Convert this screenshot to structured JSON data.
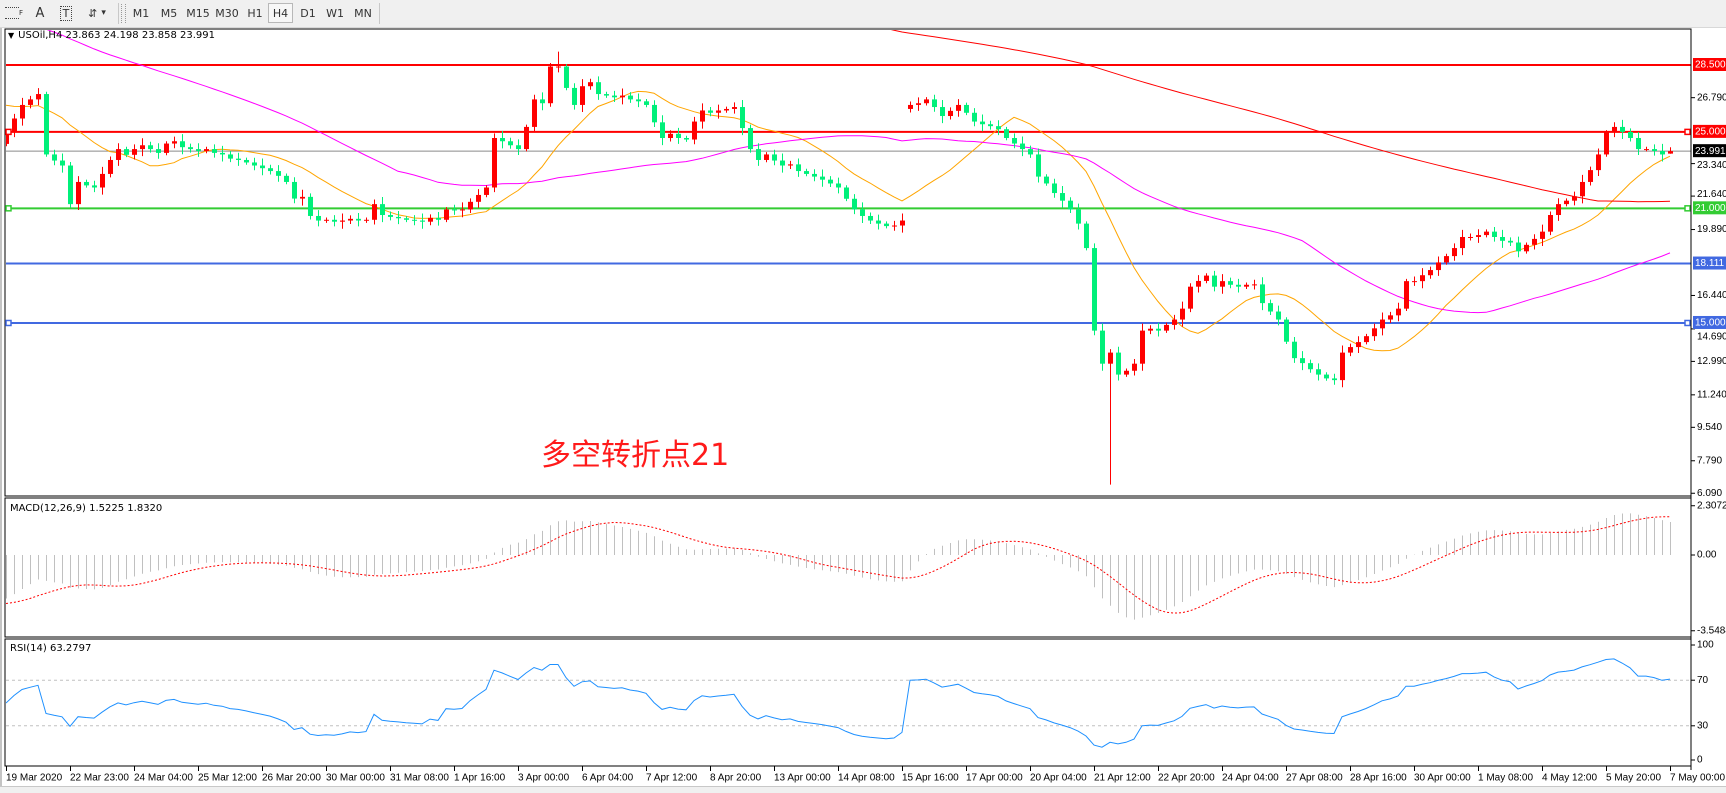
{
  "toolbar": {
    "tools": [
      {
        "icon": "period-separators-icon",
        "label": "F"
      },
      {
        "icon": "text-icon",
        "label": "A"
      },
      {
        "icon": "text-label-icon",
        "label": "T"
      },
      {
        "icon": "arrows-icon",
        "label": "⇵"
      }
    ],
    "dropdown_icon": "▾",
    "timeframes": [
      "M1",
      "M5",
      "M15",
      "M30",
      "H1",
      "H4",
      "D1",
      "W1",
      "MN"
    ],
    "active_timeframe": "H4"
  },
  "chart": {
    "header_icon": "▼",
    "symbol_header": "USOil,H4  23.863 24.198 23.858 23.991",
    "annotation": "多空转折点21",
    "colors": {
      "bull_candle": "#ff0000",
      "bear_candle": "#00f07a",
      "ma_fast": "#ffa500",
      "ma_mid": "#ff00ff",
      "ma_slow": "#ff0000",
      "macd_histogram": "#c0c0c0",
      "macd_signal": "#ff0000",
      "rsi_line": "#1e90ff",
      "current_price_line": "#8a8a8a"
    }
  },
  "chart_data": {
    "type": "candlestick",
    "symbol": "USOil",
    "timeframe": "H4",
    "last_bar": {
      "open": 23.863,
      "high": 24.198,
      "low": 23.858,
      "close": 23.991
    },
    "close": [
      24.97,
      25.7,
      26.41,
      26.7,
      26.98,
      23.82,
      23.5,
      23.24,
      21.22,
      22.38,
      22.2,
      22.09,
      22.8,
      23.53,
      24.1,
      23.8,
      24.1,
      24.3,
      24.1,
      23.9,
      24.39,
      24.51,
      24.2,
      24.1,
      24.0,
      24.1,
      23.9,
      23.82,
      23.6,
      23.53,
      23.4,
      23.24,
      23.1,
      22.95,
      22.7,
      22.38,
      21.51,
      21.6,
      20.6,
      20.36,
      20.4,
      20.3,
      20.36,
      20.45,
      20.36,
      20.4,
      21.22,
      20.65,
      20.55,
      20.48,
      20.4,
      20.36,
      20.3,
      20.5,
      20.4,
      20.94,
      20.9,
      20.94,
      21.34,
      21.7,
      22.09,
      24.68,
      24.51,
      24.3,
      24.1,
      25.26,
      26.7,
      26.5,
      28.42,
      28.42,
      27.3,
      26.41,
      27.39,
      27.6,
      26.98,
      26.9,
      26.81,
      26.9,
      26.7,
      26.6,
      26.41,
      25.5,
      24.68,
      24.9,
      24.68,
      24.6,
      25.54,
      26.12,
      26.0,
      26.12,
      26.2,
      26.3,
      25.2,
      24.1,
      23.53,
      23.82,
      23.5,
      23.24,
      23.3,
      22.95,
      22.8,
      22.66,
      22.5,
      22.3,
      22.09,
      21.5,
      20.94,
      20.6,
      20.36,
      20.2,
      20.07,
      20.1,
      20.36,
      26.41,
      26.5,
      26.7,
      26.3,
      25.83,
      26.1,
      26.41,
      26.0,
      25.54,
      25.4,
      25.3,
      25.14,
      24.68,
      24.39,
      24.1,
      23.82,
      22.66,
      22.3,
      21.8,
      21.4,
      20.94,
      20.2,
      18.92,
      14.6,
      12.87,
      13.45,
      12.3,
      12.5,
      12.87,
      14.6,
      14.7,
      14.6,
      14.9,
      15.18,
      15.75,
      16.9,
      17.2,
      17.48,
      16.9,
      17.19,
      17.0,
      16.9,
      17.0,
      17.02,
      16.04,
      15.6,
      15.18,
      14.02,
      13.16,
      12.9,
      12.58,
      12.3,
      12.1,
      12.01,
      13.45,
      13.74,
      14.0,
      14.31,
      14.72,
      15.18,
      15.4,
      15.75,
      17.19,
      17.19,
      17.5,
      17.77,
      18.17,
      18.5,
      18.92,
      19.5,
      19.5,
      19.6,
      19.78,
      19.5,
      19.3,
      19.21,
      18.75,
      19.09,
      19.4,
      19.78,
      20.65,
      21.22,
      21.4,
      21.63,
      22.38,
      23.0,
      23.82,
      24.97,
      25.26,
      25.0,
      24.68,
      24.1,
      24.1,
      24.0,
      23.82,
      23.991
    ],
    "open_overrides": {
      "113": 26.2,
      "208": 23.863
    },
    "high_overrides": {
      "69": 29.2,
      "208": 24.198
    },
    "low_overrides": {
      "138": 6.54,
      "208": 23.858
    },
    "ylim": [
      6.05,
      30.33
    ],
    "y_tick_labels": [
      "26.790",
      "23.340",
      "21.640",
      "19.890",
      "16.440",
      "14.690",
      "12.990",
      "11.240",
      "9.540",
      "7.790",
      "6.090"
    ],
    "y_tick_values": [
      26.79,
      23.34,
      21.64,
      19.89,
      16.44,
      14.69,
      12.99,
      11.24,
      9.54,
      7.79,
      6.09
    ],
    "x_tick_labels": [
      "19 Mar 2020",
      "22 Mar 23:00",
      "24 Mar 04:00",
      "25 Mar 12:00",
      "26 Mar 20:00",
      "30 Mar 00:00",
      "31 Mar 08:00",
      "1 Apr 16:00",
      "3 Apr 00:00",
      "6 Apr 04:00",
      "7 Apr 12:00",
      "8 Apr 20:00",
      "13 Apr 00:00",
      "14 Apr 08:00",
      "15 Apr 16:00",
      "17 Apr 00:00",
      "20 Apr 04:00",
      "21 Apr 12:00",
      "22 Apr 20:00",
      "24 Apr 04:00",
      "27 Apr 08:00",
      "28 Apr 16:00",
      "30 Apr 00:00",
      "1 May 08:00",
      "4 May 12:00",
      "5 May 20:00",
      "7 May 00:00"
    ],
    "horizontal_levels": [
      {
        "price": 28.5,
        "label": "28.500",
        "color": "#ff0000"
      },
      {
        "price": 25.0,
        "label": "25.000",
        "color": "#ff0000"
      },
      {
        "price": 21.0,
        "label": "21.000",
        "color": "#33cc33"
      },
      {
        "price": 18.111,
        "label": "18.111",
        "color": "#4169e1"
      },
      {
        "price": 15.0,
        "label": "15.000",
        "color": "#4169e1"
      }
    ],
    "current_price": {
      "price": 23.991,
      "label": "23.991"
    },
    "macd": {
      "title": "MACD(12,26,9) 1.5225 1.8320",
      "main": 1.5225,
      "signal": 1.832,
      "ylim": [
        -3.5484,
        2.3072
      ],
      "y_tick_labels": [
        "2.3072",
        "0.00",
        "-3.5484"
      ]
    },
    "rsi": {
      "title": "RSI(14) 63.2797",
      "value": 63.2797,
      "levels": [
        30,
        70
      ],
      "ylim": [
        0,
        100
      ],
      "y_tick_labels": [
        "100",
        "70",
        "30",
        "0"
      ]
    }
  }
}
